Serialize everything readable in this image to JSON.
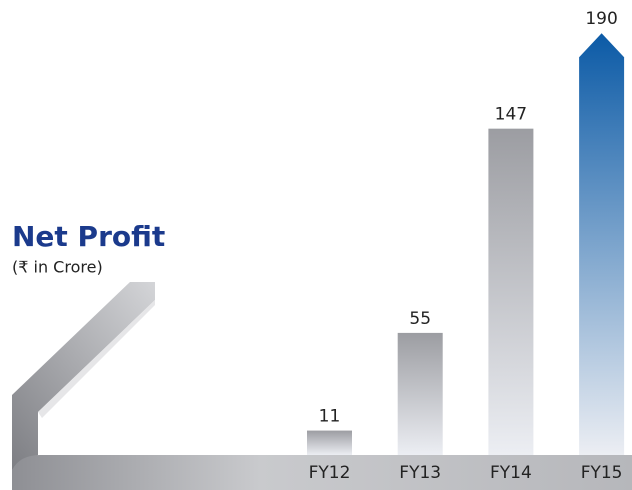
{
  "chart_data": {
    "type": "bar",
    "title": "Net Profit",
    "subtitle": "(₹ in Crore)",
    "categories": [
      "FY12",
      "FY13",
      "FY14",
      "FY15"
    ],
    "values": [
      11,
      55,
      147,
      190
    ],
    "colors": [
      "#9c9da2",
      "#9c9da2",
      "#9c9da2",
      "#0b5aa6"
    ],
    "highlight_last": true
  }
}
